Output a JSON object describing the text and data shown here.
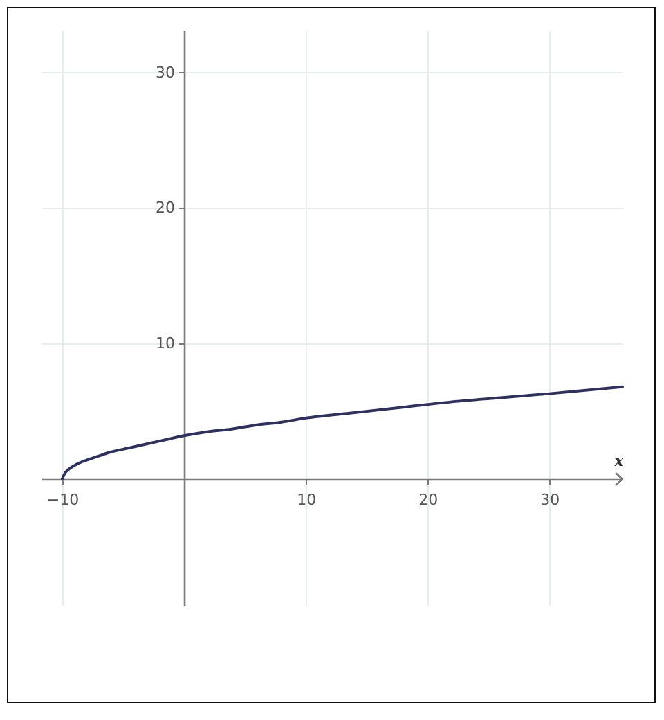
{
  "chart_data": {
    "type": "line",
    "xlabel": "x",
    "x": [
      -10,
      -9.8,
      -9.5,
      -9,
      -8,
      -7,
      -6,
      -5,
      -4,
      -2,
      0,
      2,
      4,
      6,
      8,
      10,
      14,
      18,
      22,
      26,
      30,
      36
    ],
    "values": [
      0,
      0.4,
      0.7,
      1,
      1.4,
      1.7,
      2,
      2.2,
      2.4,
      2.8,
      3.2,
      3.5,
      3.7,
      4,
      4.2,
      4.5,
      4.9,
      5.3,
      5.7,
      6,
      6.3,
      6.8
    ],
    "color": "#2e3060",
    "xlim": [
      -11.7,
      36
    ],
    "ylim": [
      -9.3,
      33.1
    ],
    "xticks": [
      -10,
      10,
      20,
      30
    ],
    "yticks": [
      10,
      20,
      30
    ],
    "grid": true
  }
}
